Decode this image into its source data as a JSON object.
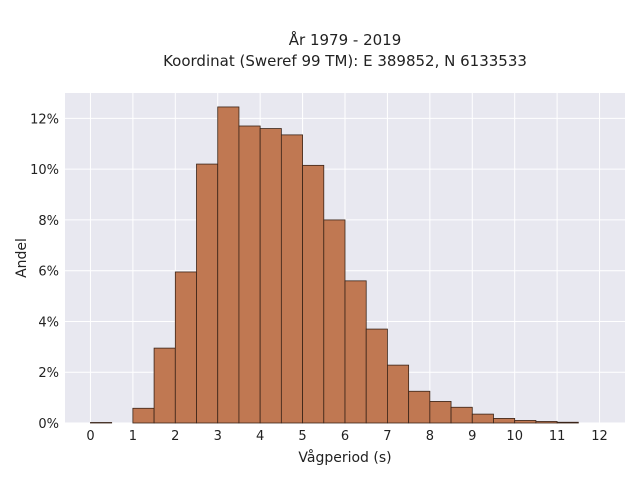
{
  "chart_data": {
    "type": "bar",
    "title_line1": "År 1979 - 2019",
    "title_line2": "Koordinat (Sweref 99 TM): E 389852, N 6133533",
    "xlabel": "Vågperiod (s)",
    "ylabel": "Andel",
    "xlim": [
      -0.6,
      12.6
    ],
    "ylim": [
      0,
      0.13
    ],
    "x_ticks": [
      0,
      1,
      2,
      3,
      4,
      5,
      6,
      7,
      8,
      9,
      10,
      11,
      12
    ],
    "y_ticks": [
      0,
      0.02,
      0.04,
      0.06,
      0.08,
      0.1,
      0.12
    ],
    "y_tick_labels": [
      "0%",
      "2%",
      "4%",
      "6%",
      "8%",
      "10%",
      "12%"
    ],
    "bin_width": 0.5,
    "bins": [
      {
        "start": 0.0,
        "value": 0.0002
      },
      {
        "start": 1.0,
        "value": 0.0058
      },
      {
        "start": 1.5,
        "value": 0.0295
      },
      {
        "start": 2.0,
        "value": 0.0595
      },
      {
        "start": 2.5,
        "value": 0.102
      },
      {
        "start": 3.0,
        "value": 0.1245
      },
      {
        "start": 3.5,
        "value": 0.117
      },
      {
        "start": 4.0,
        "value": 0.116
      },
      {
        "start": 4.5,
        "value": 0.1135
      },
      {
        "start": 5.0,
        "value": 0.1015
      },
      {
        "start": 5.5,
        "value": 0.08
      },
      {
        "start": 6.0,
        "value": 0.056
      },
      {
        "start": 6.5,
        "value": 0.037
      },
      {
        "start": 7.0,
        "value": 0.0228
      },
      {
        "start": 7.5,
        "value": 0.0125
      },
      {
        "start": 8.0,
        "value": 0.0085
      },
      {
        "start": 8.5,
        "value": 0.0062
      },
      {
        "start": 9.0,
        "value": 0.0035
      },
      {
        "start": 9.5,
        "value": 0.0018
      },
      {
        "start": 10.0,
        "value": 0.001
      },
      {
        "start": 10.5,
        "value": 0.0006
      },
      {
        "start": 11.0,
        "value": 0.0003
      }
    ],
    "bar_color": "#c07852",
    "bar_edge_color": "#3a2418",
    "plot_background": "#e8e8f0",
    "grid": true
  }
}
